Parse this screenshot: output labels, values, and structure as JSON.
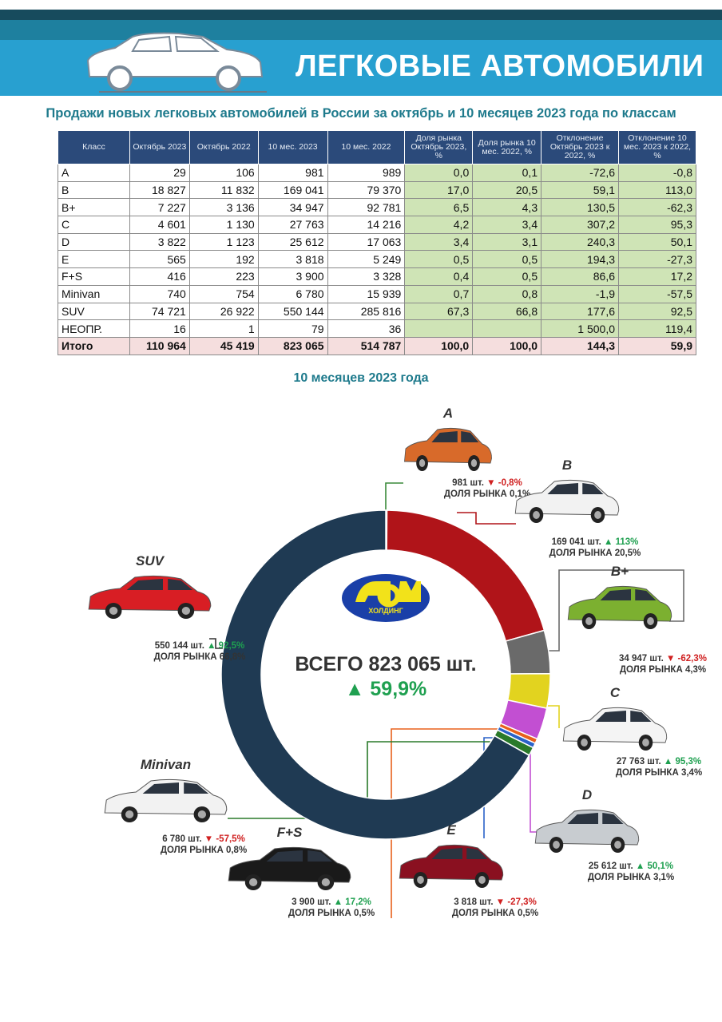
{
  "header": {
    "title": "ЛЕГКОВЫЕ АВТОМОБИЛИ",
    "subtitle": "Продажи новых легковых автомобилей в России за октябрь и 10 месяцев 2023 года по классам",
    "colors": {
      "band_dark": "#174b5d",
      "band_mid": "#1e809f",
      "band_main": "#28a0d0"
    }
  },
  "table": {
    "headers": [
      "Класс",
      "Октябрь 2023",
      "Октябрь 2022",
      "10 мес. 2023",
      "10 мес. 2022",
      "Доля рынка Октябрь 2023, %",
      "Доля рынка 10 мес. 2022, %",
      "Отклонение Октябрь 2023 к 2022, %",
      "Отклонение 10 мес. 2023 к 2022, %"
    ],
    "rows": [
      [
        "A",
        "29",
        "106",
        "981",
        "989",
        "0,0",
        "0,1",
        "-72,6",
        "-0,8"
      ],
      [
        "B",
        "18 827",
        "11 832",
        "169 041",
        "79 370",
        "17,0",
        "20,5",
        "59,1",
        "113,0"
      ],
      [
        "B+",
        "7 227",
        "3 136",
        "34 947",
        "92 781",
        "6,5",
        "4,3",
        "130,5",
        "-62,3"
      ],
      [
        "C",
        "4 601",
        "1 130",
        "27 763",
        "14 216",
        "4,2",
        "3,4",
        "307,2",
        "95,3"
      ],
      [
        "D",
        "3 822",
        "1 123",
        "25 612",
        "17 063",
        "3,4",
        "3,1",
        "240,3",
        "50,1"
      ],
      [
        "E",
        "565",
        "192",
        "3 818",
        "5 249",
        "0,5",
        "0,5",
        "194,3",
        "-27,3"
      ],
      [
        "F+S",
        "416",
        "223",
        "3 900",
        "3 328",
        "0,4",
        "0,5",
        "86,6",
        "17,2"
      ],
      [
        "Minivan",
        "740",
        "754",
        "6 780",
        "15 939",
        "0,7",
        "0,8",
        "-1,9",
        "-57,5"
      ],
      [
        "SUV",
        "74 721",
        "26 922",
        "550 144",
        "285 816",
        "67,3",
        "66,8",
        "177,6",
        "92,5"
      ],
      [
        "НЕОПР.",
        "16",
        "1",
        "79",
        "36",
        "",
        "",
        "1 500,0",
        "119,4"
      ]
    ],
    "total": [
      "Итого",
      "110 964",
      "45 419",
      "823 065",
      "514 787",
      "100,0",
      "100,0",
      "144,3",
      "59,9"
    ]
  },
  "chart_data": {
    "type": "pie",
    "donut": true,
    "title": "10 месяцев 2023 года",
    "center": {
      "total": "ВСЕГО 823 065 шт.",
      "change": "▲ 59,9%",
      "logo_text": "ХОЛДИНГ"
    },
    "slices": [
      {
        "name": "A",
        "value": 981,
        "units": "981 шт.",
        "change": "▼ -0,8%",
        "dir": "down",
        "share": "ДОЛЯ РЫНКА 0,1%",
        "color": "#3a8a3a"
      },
      {
        "name": "B",
        "value": 169041,
        "units": "169 041 шт.",
        "change": "▲ 113%",
        "dir": "up",
        "share": "ДОЛЯ РЫНКА 20,5%",
        "color": "#b01419"
      },
      {
        "name": "B+",
        "value": 34947,
        "units": "34 947 шт.",
        "change": "▼ -62,3%",
        "dir": "down",
        "share": "ДОЛЯ РЫНКА 4,3%",
        "color": "#6a6a6a"
      },
      {
        "name": "C",
        "value": 27763,
        "units": "27 763 шт.",
        "change": "▲ 95,3%",
        "dir": "up",
        "share": "ДОЛЯ РЫНКА 3,4%",
        "color": "#e2d31f"
      },
      {
        "name": "D",
        "value": 25612,
        "units": "25 612 шт.",
        "change": "▲ 50,1%",
        "dir": "up",
        "share": "ДОЛЯ РЫНКА 3,1%",
        "color": "#c24fd2"
      },
      {
        "name": "E",
        "value": 3818,
        "units": "3 818 шт.",
        "change": "▼ -27,3%",
        "dir": "down",
        "share": "ДОЛЯ РЫНКА 0,5%",
        "color": "#e8601c"
      },
      {
        "name": "F+S",
        "value": 3900,
        "units": "3 900 шт.",
        "change": "▲ 17,2%",
        "dir": "up",
        "share": "ДОЛЯ РЫНКА 0,5%",
        "color": "#2a62c8"
      },
      {
        "name": "Minivan",
        "value": 6780,
        "units": "6 780 шт.",
        "change": "▼ -57,5%",
        "dir": "down",
        "share": "ДОЛЯ РЫНКА 0,8%",
        "color": "#2a7a2a"
      },
      {
        "name": "НЕОПР.",
        "value": 79,
        "color": "#999999"
      },
      {
        "name": "SUV",
        "value": 550144,
        "units": "550 144 шт.",
        "change": "▲ 92,5%",
        "dir": "up",
        "share": "ДОЛЯ РЫНКА 66,8%",
        "color": "#1f3a53"
      }
    ]
  }
}
